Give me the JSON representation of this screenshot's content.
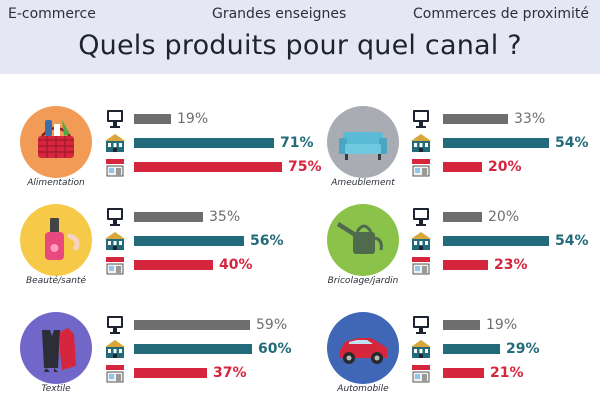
{
  "header": {
    "legend": [
      "E-commerce",
      "Grandes enseignes",
      "Commerces de proximité"
    ],
    "title": "Quels produits pour quel canal ?"
  },
  "colors": {
    "ecommerce": "#6e6e6e",
    "grandes_enseignes": "#236a7a",
    "proximite": "#d5263e",
    "header_bg": "#e6e7f4"
  },
  "chart_data": {
    "type": "bar",
    "series_names": [
      "E-commerce",
      "Grandes enseignes",
      "Commerces de proximité"
    ],
    "categories": [
      {
        "name": "Alimentation",
        "icon": "food-basket-icon",
        "values": [
          19,
          71,
          75
        ]
      },
      {
        "name": "Beauté/santé",
        "icon": "nail-polish-icon",
        "values": [
          35,
          56,
          40
        ]
      },
      {
        "name": "Textile",
        "icon": "clothes-icon",
        "values": [
          59,
          60,
          37
        ]
      },
      {
        "name": "Ameublement",
        "icon": "sofa-icon",
        "values": [
          33,
          54,
          20
        ]
      },
      {
        "name": "Bricolage/jardin",
        "icon": "watering-can-icon",
        "values": [
          20,
          54,
          23
        ]
      },
      {
        "name": "Automobile",
        "icon": "car-icon",
        "values": [
          19,
          29,
          21
        ]
      }
    ],
    "value_labels": {
      "Alimentation": [
        "19%",
        "71%",
        "75%"
      ],
      "Beauté/santé": [
        "35%",
        "56%",
        "40%"
      ],
      "Textile": [
        "59%",
        "60%",
        "37%"
      ],
      "Ameublement": [
        "33%",
        "54%",
        "20%"
      ],
      "Bricolage/jardin": [
        "20%",
        "54%",
        "23%"
      ],
      "Automobile": [
        "19%",
        "29%",
        "21%"
      ]
    }
  }
}
